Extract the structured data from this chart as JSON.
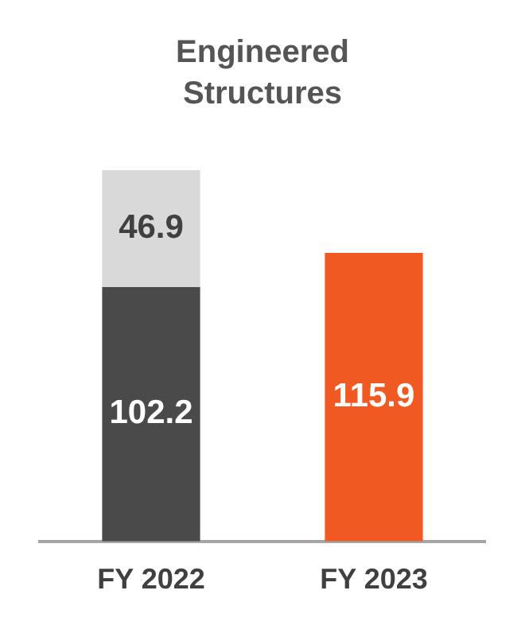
{
  "chart_data": {
    "type": "bar",
    "title": "Engineered Structures",
    "categories": [
      "FY 2022",
      "FY 2023"
    ],
    "stacked": true,
    "data_labels": true,
    "grid": false,
    "legend": false,
    "tick_labels": "x",
    "series": [
      {
        "colors": [
          "#4a4a4a",
          "#f05a22"
        ],
        "values": [
          102.2,
          115.9
        ]
      },
      {
        "color": "#d9d9d9",
        "values": [
          46.9,
          null
        ]
      }
    ]
  }
}
